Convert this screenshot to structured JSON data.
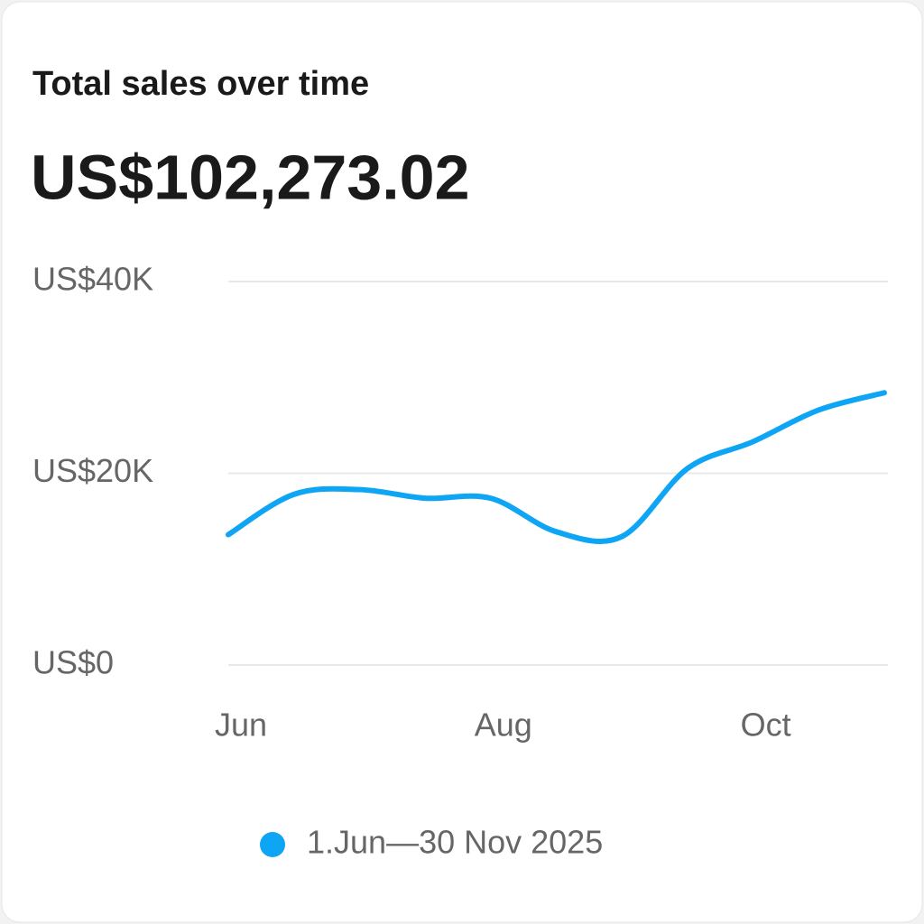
{
  "chart_data": {
    "type": "line",
    "title": "Total sales over time",
    "total": "US$102,273.02",
    "categories": [
      "Jun",
      null,
      null,
      null,
      "Aug",
      null,
      null,
      null,
      "Oct",
      null,
      null
    ],
    "series": [
      {
        "name": "1.Jun—30 Nov 2025",
        "color": "#0ea5f5",
        "values": [
          13600,
          17800,
          18300,
          17400,
          17400,
          13900,
          13400,
          20500,
          23300,
          26600,
          28400
        ]
      }
    ],
    "ylim": [
      0,
      40000
    ],
    "yticks": [
      {
        "value": 0,
        "label": "US$0"
      },
      {
        "value": 20000,
        "label": "US$20K"
      },
      {
        "value": 40000,
        "label": "US$40K"
      }
    ],
    "grid": true
  }
}
